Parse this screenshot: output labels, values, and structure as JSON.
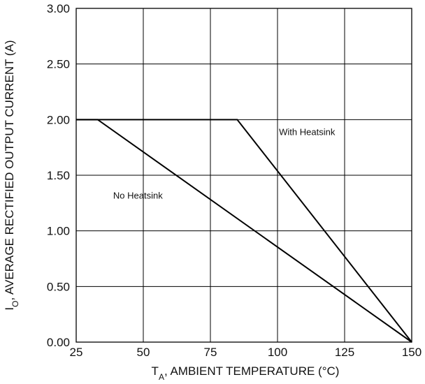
{
  "chart_data": {
    "type": "line",
    "title": "",
    "xlabel": "T",
    "xlabel_sub": "A",
    "xlabel_rest": ", AMBIENT TEMPERATURE (°C)",
    "ylabel": "I",
    "ylabel_sub": "O",
    "ylabel_rest": ", AVERAGE RECTIFIED OUTPUT CURRENT (A)",
    "xlim": [
      25,
      150
    ],
    "ylim": [
      0,
      3
    ],
    "grid": true,
    "xticks": [
      25,
      50,
      75,
      100,
      125,
      150
    ],
    "xtick_labels": [
      "25",
      "50",
      "75",
      "100",
      "125",
      "150"
    ],
    "yticks": [
      0,
      0.5,
      1.0,
      1.5,
      2.0,
      2.5,
      3.0
    ],
    "ytick_labels": [
      "0.00",
      "0.50",
      "1.00",
      "1.50",
      "2.00",
      "2.50",
      "3.00"
    ],
    "series": [
      {
        "points": [
          [
            25,
            2.0
          ],
          [
            85,
            2.0
          ],
          [
            150,
            0.0
          ]
        ]
      },
      {
        "points": [
          [
            25,
            2.0
          ],
          [
            33,
            2.0
          ],
          [
            150,
            0.0
          ]
        ]
      }
    ],
    "annotations": [
      {
        "text": "With Heatsink",
        "x": 111,
        "y": 1.86
      },
      {
        "text": "No Heatsink",
        "x": 48,
        "y": 1.29
      }
    ]
  }
}
